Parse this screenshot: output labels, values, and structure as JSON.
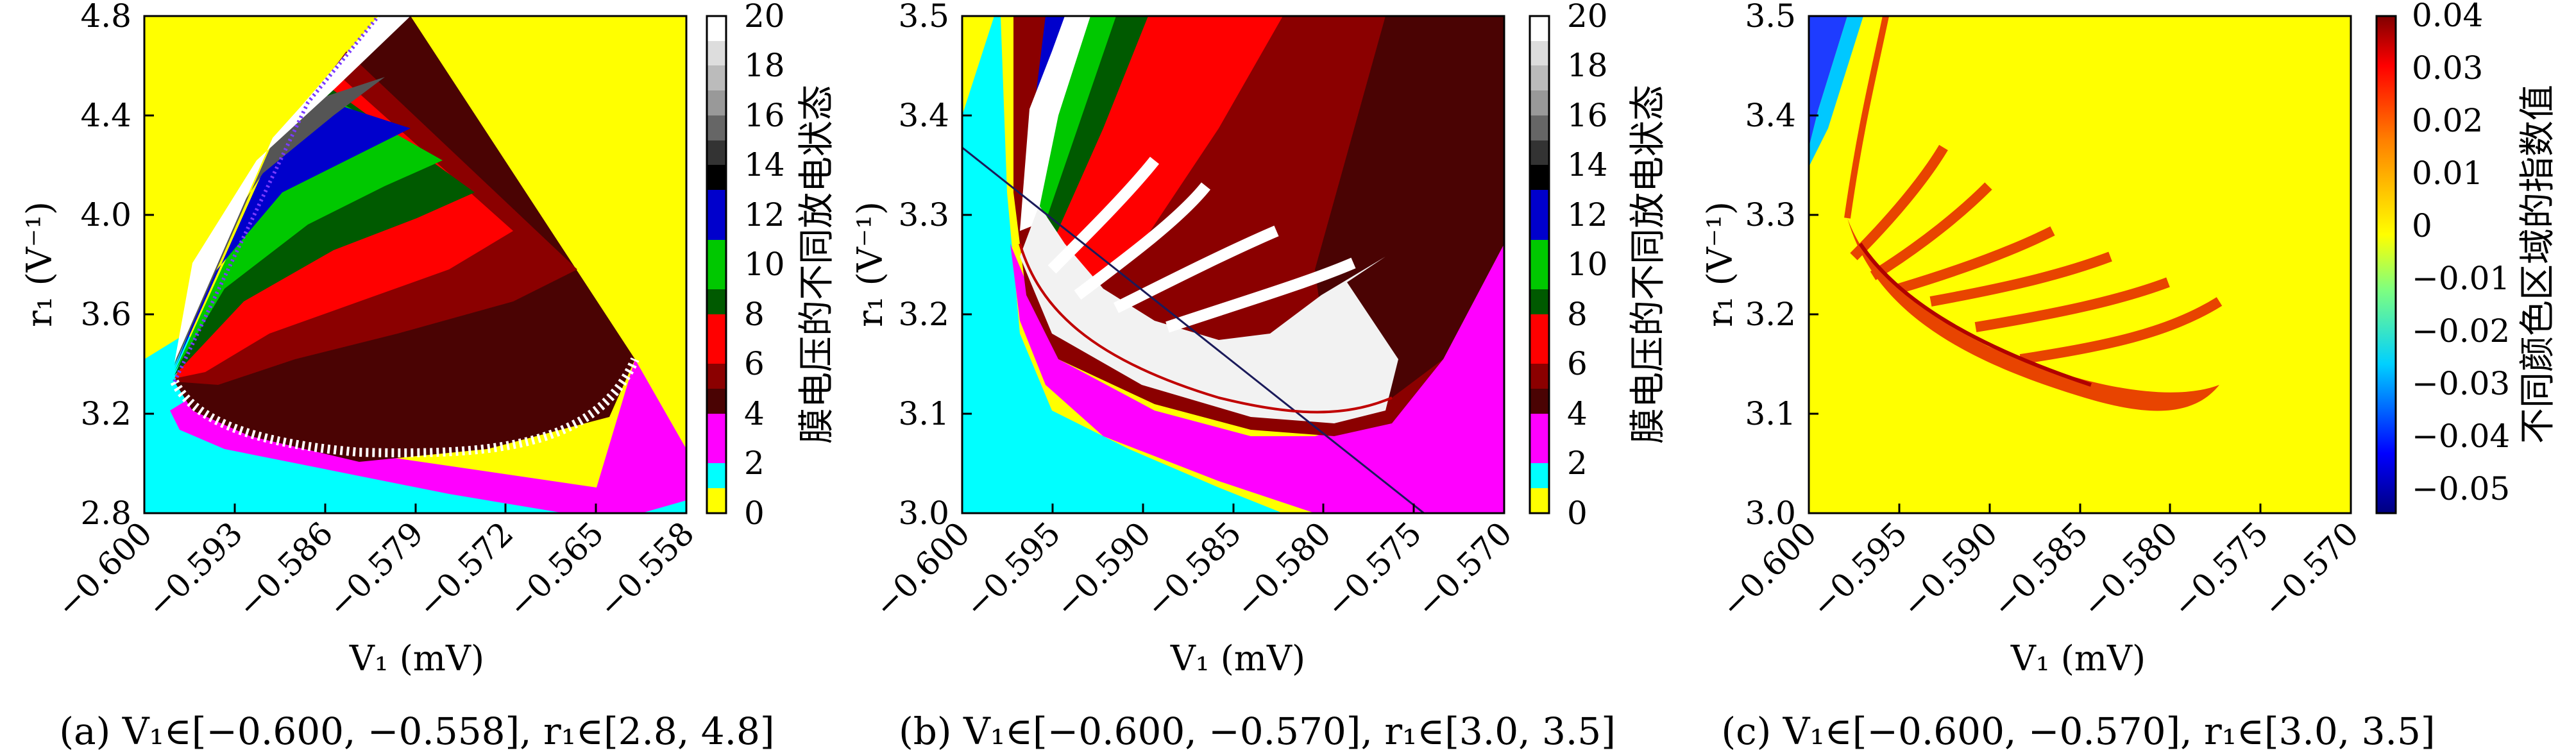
{
  "colors": {
    "yellow": "#ffff00",
    "cyan": "#00ffff",
    "magenta": "#ff00ff",
    "maroon": "#8b0000",
    "dark_maroon": "#4a0303",
    "red": "#ff0000",
    "green": "#00c800",
    "dark_green": "#005a00",
    "blue": "#0000cc",
    "white": "#ffffff",
    "black": "#000000"
  },
  "chart_data": [
    {
      "id": "a",
      "type": "heatmap",
      "caption": "(a) V₁∈[−0.600, −0.558], r₁∈[2.8, 4.8]",
      "xlabel": "V₁ (mV)",
      "ylabel": "r₁ (V⁻¹)",
      "xlim": [
        -0.6,
        -0.558
      ],
      "ylim": [
        2.8,
        4.8
      ],
      "x_ticks": [
        "−0.600",
        "−0.593",
        "−0.586",
        "−0.579",
        "−0.572",
        "−0.565",
        "−0.558"
      ],
      "y_ticks": [
        "2.8",
        "3.2",
        "3.6",
        "4.0",
        "4.4",
        "4.8"
      ],
      "colorbar": {
        "label": "膜电压的不同放电状态",
        "range": [
          0,
          20
        ],
        "ticks": [
          "0",
          "2",
          "4",
          "6",
          "8",
          "10",
          "12",
          "14",
          "16",
          "18",
          "20"
        ]
      }
    },
    {
      "id": "b",
      "type": "heatmap",
      "caption": "(b) V₁∈[−0.600, −0.570], r₁∈[3.0, 3.5]",
      "xlabel": "V₁ (mV)",
      "ylabel": "r₁ (V⁻¹)",
      "xlim": [
        -0.6,
        -0.57
      ],
      "ylim": [
        3.0,
        3.5
      ],
      "x_ticks": [
        "−0.600",
        "−0.595",
        "−0.590",
        "−0.585",
        "−0.580",
        "−0.575",
        "−0.570"
      ],
      "y_ticks": [
        "3.0",
        "3.1",
        "3.2",
        "3.3",
        "3.4",
        "3.5"
      ],
      "colorbar": {
        "label": "膜电压的不同放电状态",
        "range": [
          0,
          20
        ],
        "ticks": [
          "0",
          "2",
          "4",
          "6",
          "8",
          "10",
          "12",
          "14",
          "16",
          "18",
          "20"
        ]
      }
    },
    {
      "id": "c",
      "type": "heatmap",
      "caption": "(c) V₁∈[−0.600, −0.570], r₁∈[3.0, 3.5]",
      "xlabel": "V₁ (mV)",
      "ylabel": "r₁ (V⁻¹)",
      "xlim": [
        -0.6,
        -0.57
      ],
      "ylim": [
        3.0,
        3.5
      ],
      "x_ticks": [
        "−0.600",
        "−0.595",
        "−0.590",
        "−0.585",
        "−0.580",
        "−0.575",
        "−0.570"
      ],
      "y_ticks": [
        "3.0",
        "3.1",
        "3.2",
        "3.3",
        "3.4",
        "3.5"
      ],
      "colorbar": {
        "label": "不同颜色区域的指数值",
        "range": [
          -0.05,
          0.04
        ],
        "ticks": [
          "−0.05",
          "−0.04",
          "−0.03",
          "−0.02",
          "−0.01",
          "0",
          "0.01",
          "0.02",
          "0.03",
          "0.04"
        ]
      }
    }
  ]
}
